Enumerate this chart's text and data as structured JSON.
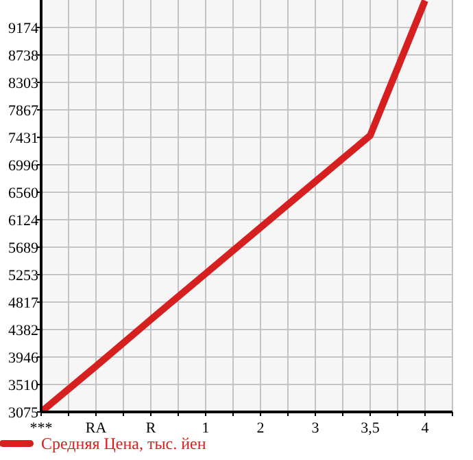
{
  "chart_data": {
    "type": "line",
    "categories": [
      "***",
      "RA",
      "R",
      "1",
      "2",
      "3",
      "3,5",
      "4"
    ],
    "series": [
      {
        "name": "Средняя Цена, тыс. йен",
        "color": "#d61f1f",
        "values": [
          3075,
          3800,
          4540,
          5270,
          6000,
          6730,
          7460,
          9600
        ]
      }
    ],
    "ylim": [
      3075,
      9610
    ],
    "yticks": [
      3075,
      3510,
      3946,
      4382,
      4817,
      5253,
      5689,
      6124,
      6560,
      6996,
      7431,
      7867,
      8303,
      8738,
      9174
    ],
    "grid": true,
    "legend": "bottom",
    "marker": "none",
    "line_style": "solid"
  }
}
